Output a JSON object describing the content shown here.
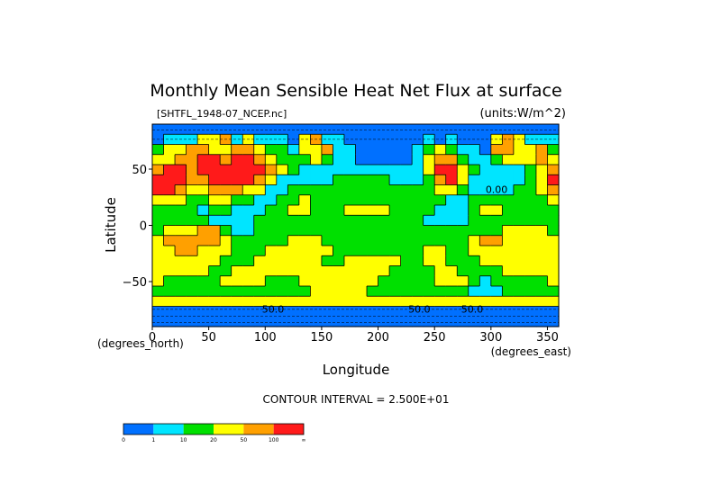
{
  "chart_data": {
    "type": "heatmap",
    "title": "Monthly Mean Sensible Heat Net Flux at surface",
    "file_label": "[SHTFL_1948-07_NCEP.nc]",
    "units_label": "(units:W/m^2)",
    "xlabel": "Longitude",
    "ylabel": "Latitude",
    "x_units_label": "(degrees_east)",
    "y_units_label": "(degrees_north)",
    "xlim": [
      0,
      360
    ],
    "ylim": [
      -90,
      90
    ],
    "xticks": [
      0,
      50,
      100,
      150,
      200,
      250,
      300,
      350
    ],
    "yticks": [
      50,
      0,
      -50
    ],
    "contour_interval_text": "CONTOUR INTERVAL = 2.500E+01",
    "contour_labels": [
      "50.0",
      "50.0",
      "50.0",
      "0.00"
    ],
    "colorbar": {
      "colors": [
        "#0070ff",
        "#00e5ff",
        "#00e000",
        "#ffff00",
        "#ffa000",
        "#ff1a1a"
      ],
      "labels": [
        "0",
        "1",
        "10",
        "20",
        "50",
        "100",
        "∞"
      ]
    },
    "field_rows_description_free": true,
    "field": [
      [
        0,
        0,
        0,
        0,
        0,
        0,
        0,
        0,
        0,
        0,
        0,
        0,
        0,
        0,
        0,
        0,
        0,
        0,
        0,
        0,
        0,
        0,
        0,
        0,
        0,
        0,
        0,
        0,
        0,
        0,
        0,
        0,
        0,
        0,
        0,
        0
      ],
      [
        0,
        1,
        1,
        1,
        3,
        3,
        4,
        1,
        3,
        1,
        1,
        1,
        0,
        3,
        4,
        1,
        1,
        0,
        0,
        0,
        0,
        0,
        0,
        0,
        1,
        0,
        1,
        0,
        0,
        0,
        3,
        4,
        3,
        1,
        1,
        1
      ],
      [
        2,
        3,
        3,
        4,
        4,
        3,
        3,
        4,
        4,
        3,
        2,
        2,
        1,
        3,
        3,
        4,
        1,
        1,
        0,
        0,
        0,
        0,
        0,
        1,
        2,
        3,
        2,
        1,
        1,
        0,
        4,
        4,
        3,
        3,
        4,
        2
      ],
      [
        3,
        3,
        4,
        4,
        5,
        5,
        4,
        5,
        5,
        4,
        3,
        2,
        2,
        2,
        3,
        2,
        1,
        1,
        0,
        0,
        0,
        0,
        0,
        1,
        3,
        4,
        4,
        2,
        1,
        1,
        2,
        3,
        3,
        3,
        4,
        3
      ],
      [
        4,
        5,
        5,
        4,
        5,
        5,
        5,
        5,
        5,
        5,
        4,
        3,
        2,
        1,
        1,
        1,
        1,
        1,
        1,
        1,
        1,
        1,
        1,
        1,
        3,
        5,
        5,
        3,
        2,
        1,
        1,
        1,
        1,
        2,
        3,
        4
      ],
      [
        5,
        5,
        5,
        4,
        4,
        5,
        5,
        5,
        5,
        4,
        3,
        1,
        1,
        1,
        1,
        1,
        2,
        2,
        2,
        2,
        2,
        1,
        1,
        1,
        2,
        4,
        5,
        3,
        1,
        1,
        1,
        1,
        1,
        2,
        3,
        5
      ],
      [
        5,
        5,
        4,
        3,
        3,
        4,
        4,
        4,
        3,
        3,
        1,
        1,
        2,
        2,
        2,
        2,
        2,
        2,
        2,
        2,
        2,
        2,
        2,
        2,
        2,
        3,
        3,
        2,
        1,
        1,
        1,
        1,
        2,
        2,
        3,
        4
      ],
      [
        3,
        3,
        3,
        2,
        2,
        3,
        3,
        2,
        2,
        1,
        1,
        2,
        2,
        3,
        2,
        2,
        2,
        2,
        2,
        2,
        2,
        2,
        2,
        2,
        2,
        2,
        1,
        1,
        2,
        2,
        2,
        2,
        2,
        2,
        2,
        3
      ],
      [
        2,
        2,
        2,
        2,
        1,
        2,
        2,
        1,
        1,
        1,
        2,
        2,
        3,
        3,
        2,
        2,
        2,
        3,
        3,
        3,
        3,
        2,
        2,
        2,
        2,
        1,
        1,
        1,
        2,
        3,
        3,
        2,
        2,
        2,
        2,
        2
      ],
      [
        2,
        2,
        2,
        2,
        2,
        1,
        1,
        1,
        1,
        2,
        2,
        2,
        2,
        2,
        2,
        2,
        2,
        2,
        2,
        2,
        2,
        2,
        2,
        2,
        1,
        1,
        1,
        1,
        2,
        2,
        2,
        2,
        2,
        2,
        2,
        2
      ],
      [
        2,
        3,
        3,
        3,
        4,
        4,
        2,
        1,
        1,
        2,
        2,
        2,
        2,
        2,
        2,
        2,
        2,
        2,
        2,
        2,
        2,
        2,
        2,
        2,
        2,
        2,
        2,
        2,
        2,
        2,
        2,
        3,
        3,
        3,
        3,
        2
      ],
      [
        3,
        4,
        4,
        4,
        4,
        4,
        3,
        2,
        2,
        2,
        2,
        2,
        3,
        3,
        3,
        2,
        2,
        2,
        2,
        2,
        2,
        2,
        2,
        2,
        2,
        2,
        2,
        2,
        3,
        4,
        4,
        3,
        3,
        3,
        3,
        3
      ],
      [
        3,
        3,
        4,
        4,
        3,
        3,
        3,
        2,
        2,
        2,
        3,
        3,
        3,
        3,
        3,
        3,
        2,
        2,
        2,
        2,
        2,
        2,
        2,
        2,
        3,
        3,
        2,
        2,
        3,
        3,
        3,
        3,
        3,
        3,
        3,
        3
      ],
      [
        3,
        3,
        3,
        3,
        3,
        3,
        2,
        2,
        2,
        3,
        3,
        3,
        3,
        3,
        3,
        2,
        2,
        3,
        3,
        3,
        3,
        3,
        2,
        2,
        3,
        3,
        2,
        2,
        2,
        3,
        3,
        3,
        3,
        3,
        3,
        3
      ],
      [
        3,
        3,
        3,
        3,
        3,
        2,
        2,
        3,
        3,
        3,
        3,
        3,
        3,
        3,
        3,
        3,
        3,
        3,
        3,
        3,
        3,
        2,
        2,
        2,
        2,
        3,
        3,
        2,
        2,
        2,
        2,
        3,
        3,
        3,
        3,
        3
      ],
      [
        3,
        2,
        2,
        2,
        2,
        2,
        3,
        3,
        3,
        3,
        2,
        2,
        2,
        3,
        3,
        3,
        3,
        3,
        3,
        3,
        2,
        2,
        2,
        2,
        2,
        3,
        3,
        3,
        2,
        1,
        2,
        2,
        2,
        2,
        2,
        3
      ],
      [
        2,
        2,
        2,
        2,
        2,
        2,
        2,
        2,
        2,
        2,
        2,
        2,
        2,
        2,
        3,
        3,
        3,
        3,
        3,
        2,
        2,
        2,
        2,
        2,
        2,
        2,
        2,
        2,
        1,
        1,
        1,
        2,
        2,
        2,
        2,
        2
      ],
      [
        3,
        3,
        3,
        3,
        3,
        3,
        3,
        3,
        3,
        3,
        3,
        3,
        3,
        3,
        3,
        3,
        3,
        3,
        3,
        3,
        3,
        3,
        3,
        3,
        3,
        3,
        3,
        3,
        3,
        3,
        3,
        3,
        3,
        3,
        3,
        3
      ],
      [
        0,
        0,
        0,
        0,
        0,
        0,
        0,
        0,
        0,
        0,
        0,
        0,
        0,
        0,
        0,
        0,
        0,
        0,
        0,
        0,
        0,
        0,
        0,
        0,
        0,
        0,
        0,
        0,
        0,
        0,
        0,
        0,
        0,
        0,
        0,
        0
      ],
      [
        0,
        0,
        0,
        0,
        0,
        0,
        0,
        0,
        0,
        0,
        0,
        0,
        0,
        0,
        0,
        0,
        0,
        0,
        0,
        0,
        0,
        0,
        0,
        0,
        0,
        0,
        0,
        0,
        0,
        0,
        0,
        0,
        0,
        0,
        0,
        0
      ]
    ]
  }
}
